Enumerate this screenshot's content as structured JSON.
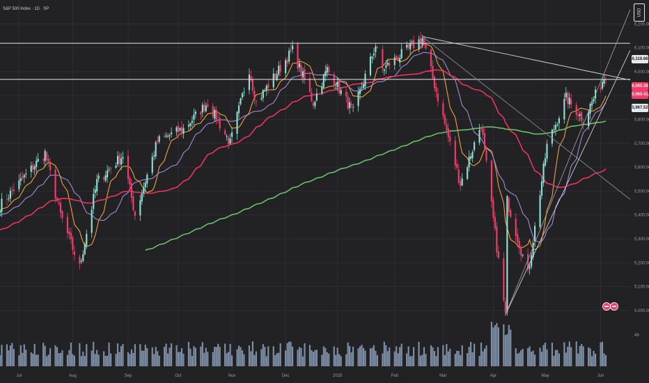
{
  "header": {
    "title": "S&P 500 Index · 1D · SP",
    "currency": "USD"
  },
  "price_axis": {
    "ticks": [
      "6,200.00",
      "6,100.00",
      "6,000.00",
      "5,900.00",
      "5,800.00",
      "5,700.00",
      "5,600.00",
      "5,500.00",
      "5,400.00",
      "5,300.00",
      "5,200.00",
      "5,100.00",
      "5,000.00"
    ],
    "levels": [
      {
        "label": "6,118.68",
        "style": "white",
        "value": 6118.68
      },
      {
        "label": "6,000.36",
        "style": "pink",
        "value": 6000.36
      },
      {
        "label": "5,969.41",
        "style": "pink2",
        "value": 5969.41
      },
      {
        "label": "5,967.52",
        "style": "white",
        "value": 5967.52
      }
    ]
  },
  "time_axis": {
    "ticks": [
      "Jul",
      "Aug",
      "Sep",
      "Oct",
      "Nov",
      "Dec",
      "2025",
      "Feb",
      "Mar",
      "Apr",
      "May",
      "Jun"
    ]
  },
  "volume": {
    "label": "49"
  },
  "colors": {
    "up": "#8fe0d2",
    "down": "#f23d6a",
    "ma_fast": "#f0a33a",
    "ma_mid": "#a58bd1",
    "ma_slow": "#e8365f",
    "ma_200": "#6cc06a",
    "volume": "#8ea3bd"
  },
  "chart_data": {
    "type": "candlestick",
    "title": "S&P 500 Index · 1D · SP",
    "currency": "USD",
    "x_range": [
      "2024-06-20",
      "2025-06-05"
    ],
    "y_range": [
      4950,
      6300
    ],
    "month_ticks": [
      "Jul",
      "Aug",
      "Sep",
      "Oct",
      "Nov",
      "Dec",
      "2025",
      "Feb",
      "Mar",
      "Apr",
      "May",
      "Jun"
    ],
    "horizontal_levels": [
      6118.68,
      5967.52
    ],
    "close_anchors": [
      {
        "date": "2024-06-20",
        "close": 5440
      },
      {
        "date": "2024-07-16",
        "close": 5660
      },
      {
        "date": "2024-07-25",
        "close": 5400
      },
      {
        "date": "2024-08-05",
        "close": 5180
      },
      {
        "date": "2024-08-15",
        "close": 5540
      },
      {
        "date": "2024-08-30",
        "close": 5650
      },
      {
        "date": "2024-09-06",
        "close": 5400
      },
      {
        "date": "2024-09-19",
        "close": 5710
      },
      {
        "date": "2024-10-04",
        "close": 5760
      },
      {
        "date": "2024-10-18",
        "close": 5870
      },
      {
        "date": "2024-10-31",
        "close": 5700
      },
      {
        "date": "2024-11-11",
        "close": 6010
      },
      {
        "date": "2024-11-15",
        "close": 5870
      },
      {
        "date": "2024-12-06",
        "close": 6090
      },
      {
        "date": "2024-12-18",
        "close": 5870
      },
      {
        "date": "2024-12-26",
        "close": 6010
      },
      {
        "date": "2025-01-10",
        "close": 5830
      },
      {
        "date": "2025-01-23",
        "close": 6110
      },
      {
        "date": "2025-01-27",
        "close": 6010
      },
      {
        "date": "2025-02-19",
        "close": 6140
      },
      {
        "date": "2025-03-13",
        "close": 5530
      },
      {
        "date": "2025-03-25",
        "close": 5780
      },
      {
        "date": "2025-04-08",
        "close": 4980
      },
      {
        "date": "2025-04-09",
        "close": 5460
      },
      {
        "date": "2025-04-21",
        "close": 5150
      },
      {
        "date": "2025-05-02",
        "close": 5690
      },
      {
        "date": "2025-05-13",
        "close": 5890
      },
      {
        "date": "2025-05-23",
        "close": 5800
      },
      {
        "date": "2025-06-05",
        "close": 5990
      }
    ],
    "moving_averages": [
      {
        "period": 10,
        "color": "#f0a33a"
      },
      {
        "period": 21,
        "color": "#a58bd1"
      },
      {
        "period": 50,
        "color": "#e8365f"
      },
      {
        "period": 200,
        "color": "#6cc06a"
      }
    ]
  }
}
